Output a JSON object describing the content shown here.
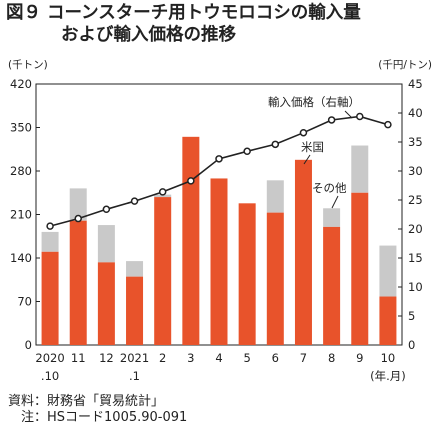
{
  "title": {
    "number": "図９",
    "line1": "コーンスターチ用トウモロコシの輸入量",
    "line2": "および輸入価格の推移"
  },
  "chart_data": {
    "type": "bar+line",
    "categories": [
      {
        "top": "2020",
        "bottom": ".10"
      },
      {
        "top": "11",
        "bottom": ""
      },
      {
        "top": "12",
        "bottom": ""
      },
      {
        "top": "2021",
        "bottom": ".1"
      },
      {
        "top": "2",
        "bottom": ""
      },
      {
        "top": "3",
        "bottom": ""
      },
      {
        "top": "4",
        "bottom": ""
      },
      {
        "top": "5",
        "bottom": ""
      },
      {
        "top": "6",
        "bottom": ""
      },
      {
        "top": "7",
        "bottom": ""
      },
      {
        "top": "8",
        "bottom": ""
      },
      {
        "top": "9",
        "bottom": ""
      },
      {
        "top": "10",
        "bottom": "(年.月)"
      }
    ],
    "left_axis": {
      "unit": "(千トン)",
      "min": 0,
      "max": 420,
      "ticks": [
        0,
        70,
        140,
        210,
        280,
        350,
        420
      ]
    },
    "right_axis": {
      "unit": "(千円/トン)",
      "min": 0,
      "max": 45,
      "ticks": [
        0,
        5,
        10,
        15,
        20,
        25,
        30,
        35,
        40,
        45
      ]
    },
    "series": [
      {
        "name": "米国",
        "kind": "bar",
        "axis": "left",
        "color": "#e8532b",
        "values": [
          150,
          200,
          133,
          110,
          238,
          335,
          268,
          228,
          213,
          298,
          190,
          245,
          78
        ]
      },
      {
        "name": "その他",
        "kind": "bar-stacked",
        "axis": "left",
        "color": "#c9c9c9",
        "values": [
          32,
          52,
          60,
          25,
          4,
          0,
          0,
          0,
          52,
          0,
          30,
          76,
          82
        ]
      },
      {
        "name": "輸入価格（右軸）",
        "kind": "line",
        "axis": "right",
        "color": "#222222",
        "values": [
          20.5,
          21.8,
          23.4,
          24.8,
          26.4,
          28.3,
          32.1,
          33.4,
          34.6,
          36.6,
          38.8,
          39.4,
          38.0
        ]
      }
    ],
    "grid": false
  },
  "source": "資料：財務省「貿易統計」",
  "note": "　注：HSコード1005.90-091"
}
